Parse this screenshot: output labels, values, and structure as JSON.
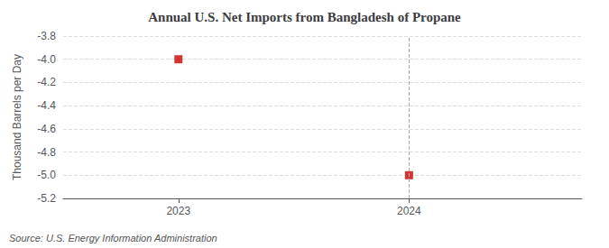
{
  "chart_data": {
    "type": "scatter",
    "title": "Annual U.S. Net Imports from Bangladesh of Propane",
    "ylabel": "Thousand Barrels per Day",
    "source": "Source: U.S. Energy Information Administration",
    "x": [
      2023,
      2024
    ],
    "values": [
      -4.0,
      -5.0
    ],
    "color": "#cc0000",
    "marker": "square",
    "xlim": [
      2022.5,
      2024.75
    ],
    "xticks": [
      2023,
      2024
    ],
    "ylim": [
      -5.2,
      -3.8
    ],
    "yticks": [
      -5.2,
      {
        "value": -5.0,
        "label": "-5.0"
      },
      -4.8,
      -4.6,
      -4.4,
      -4.2,
      {
        "value": -4.0,
        "label": "-4.0"
      },
      -3.8
    ],
    "grid": true,
    "vlines": [
      {
        "x": 2024,
        "color": "#aaaaaa"
      }
    ]
  }
}
